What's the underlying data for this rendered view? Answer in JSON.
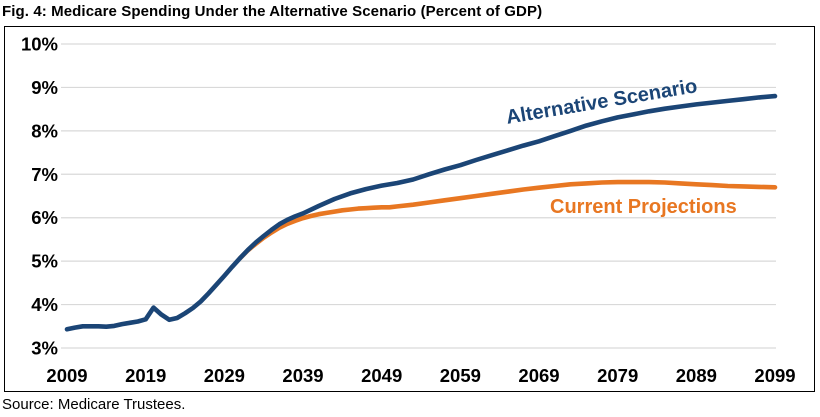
{
  "title": "Fig. 4: Medicare Spending Under the Alternative Scenario (Percent of GDP)",
  "source": "Source: Medicare Trustees.",
  "colors": {
    "alternative_line": "#1B4576",
    "current_line": "#E87722",
    "gridline": "#D9D9D9",
    "axis_text": "#000000",
    "chart_border": "#000000",
    "background": "#FFFFFF"
  },
  "chart_data": {
    "type": "line",
    "title": "Fig. 4: Medicare Spending Under the Alternative Scenario (Percent of GDP)",
    "xlabel": "",
    "ylabel": "Percent of GDP",
    "xlim": [
      2009,
      2099
    ],
    "ylim": [
      3,
      10
    ],
    "grid": "horizontal",
    "x_ticks": [
      2009,
      2019,
      2029,
      2039,
      2049,
      2059,
      2069,
      2079,
      2089,
      2099
    ],
    "y_ticks": [
      3,
      4,
      5,
      6,
      7,
      8,
      9,
      10
    ],
    "y_tick_suffix": "%",
    "legend_position": "inline-labels",
    "series": [
      {
        "name": "Alternative Scenario",
        "color": "#1B4576",
        "points": [
          [
            2009,
            3.43
          ],
          [
            2010,
            3.47
          ],
          [
            2011,
            3.5
          ],
          [
            2012,
            3.5
          ],
          [
            2013,
            3.5
          ],
          [
            2014,
            3.49
          ],
          [
            2015,
            3.51
          ],
          [
            2016,
            3.55
          ],
          [
            2017,
            3.58
          ],
          [
            2018,
            3.61
          ],
          [
            2019,
            3.66
          ],
          [
            2020,
            3.93
          ],
          [
            2021,
            3.77
          ],
          [
            2022,
            3.65
          ],
          [
            2023,
            3.69
          ],
          [
            2024,
            3.8
          ],
          [
            2025,
            3.92
          ],
          [
            2026,
            4.07
          ],
          [
            2027,
            4.26
          ],
          [
            2028,
            4.46
          ],
          [
            2029,
            4.66
          ],
          [
            2030,
            4.87
          ],
          [
            2031,
            5.07
          ],
          [
            2032,
            5.26
          ],
          [
            2033,
            5.43
          ],
          [
            2034,
            5.58
          ],
          [
            2035,
            5.72
          ],
          [
            2036,
            5.85
          ],
          [
            2037,
            5.95
          ],
          [
            2038,
            6.03
          ],
          [
            2039,
            6.1
          ],
          [
            2041,
            6.27
          ],
          [
            2043,
            6.43
          ],
          [
            2045,
            6.56
          ],
          [
            2047,
            6.66
          ],
          [
            2049,
            6.74
          ],
          [
            2051,
            6.8
          ],
          [
            2053,
            6.88
          ],
          [
            2055,
            7.0
          ],
          [
            2057,
            7.11
          ],
          [
            2059,
            7.21
          ],
          [
            2061,
            7.33
          ],
          [
            2063,
            7.44
          ],
          [
            2065,
            7.55
          ],
          [
            2067,
            7.66
          ],
          [
            2069,
            7.76
          ],
          [
            2071,
            7.88
          ],
          [
            2073,
            8.0
          ],
          [
            2075,
            8.12
          ],
          [
            2077,
            8.22
          ],
          [
            2079,
            8.31
          ],
          [
            2081,
            8.38
          ],
          [
            2083,
            8.45
          ],
          [
            2085,
            8.51
          ],
          [
            2087,
            8.56
          ],
          [
            2089,
            8.61
          ],
          [
            2091,
            8.65
          ],
          [
            2093,
            8.69
          ],
          [
            2095,
            8.73
          ],
          [
            2097,
            8.77
          ],
          [
            2099,
            8.8
          ]
        ]
      },
      {
        "name": "Current Projections",
        "color": "#E87722",
        "points": [
          [
            2031,
            5.07
          ],
          [
            2032,
            5.25
          ],
          [
            2033,
            5.4
          ],
          [
            2034,
            5.54
          ],
          [
            2035,
            5.66
          ],
          [
            2036,
            5.77
          ],
          [
            2037,
            5.86
          ],
          [
            2038,
            5.93
          ],
          [
            2039,
            5.99
          ],
          [
            2040,
            6.04
          ],
          [
            2041,
            6.08
          ],
          [
            2042,
            6.11
          ],
          [
            2043,
            6.14
          ],
          [
            2044,
            6.17
          ],
          [
            2045,
            6.19
          ],
          [
            2046,
            6.21
          ],
          [
            2047,
            6.22
          ],
          [
            2048,
            6.23
          ],
          [
            2049,
            6.24
          ],
          [
            2050,
            6.24
          ],
          [
            2051,
            6.26
          ],
          [
            2053,
            6.3
          ],
          [
            2055,
            6.35
          ],
          [
            2057,
            6.4
          ],
          [
            2059,
            6.45
          ],
          [
            2061,
            6.5
          ],
          [
            2063,
            6.55
          ],
          [
            2065,
            6.6
          ],
          [
            2067,
            6.65
          ],
          [
            2069,
            6.69
          ],
          [
            2071,
            6.73
          ],
          [
            2073,
            6.77
          ],
          [
            2075,
            6.79
          ],
          [
            2077,
            6.81
          ],
          [
            2079,
            6.82
          ],
          [
            2081,
            6.82
          ],
          [
            2083,
            6.82
          ],
          [
            2085,
            6.81
          ],
          [
            2087,
            6.79
          ],
          [
            2089,
            6.77
          ],
          [
            2091,
            6.75
          ],
          [
            2093,
            6.73
          ],
          [
            2095,
            6.72
          ],
          [
            2097,
            6.71
          ],
          [
            2099,
            6.7
          ]
        ]
      }
    ]
  }
}
